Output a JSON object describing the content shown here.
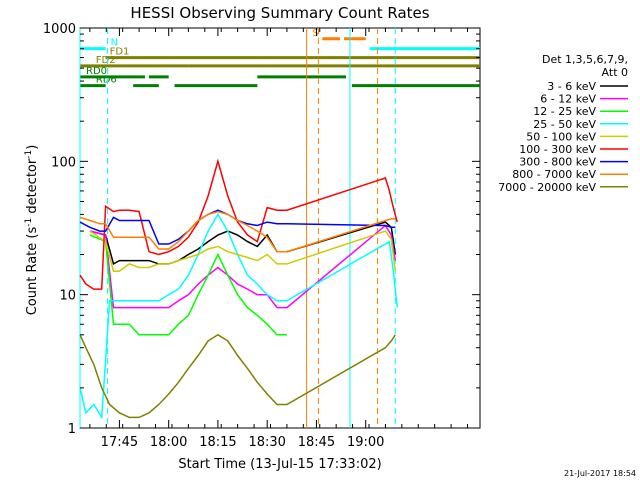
{
  "chart_data": {
    "type": "line",
    "title": "HESSI Observing Summary Count Rates",
    "xlabel": "Start Time (13-Jul-15 17:33:02)",
    "ylabel_main": "Count Rate (s",
    "ylabel_sup1": "-1",
    "ylabel_mid": " detector",
    "ylabel_sup2": "-1",
    "ylabel_end": ")",
    "yscale": "log",
    "ylim": [
      1,
      1000
    ],
    "xlim_minutes": [
      17.55,
      19.58
    ],
    "x_tick_labels": [
      "17:45",
      "18:00",
      "18:15",
      "18:30",
      "18:45",
      "19:00"
    ],
    "x_tick_hours": [
      17.75,
      18.0,
      18.25,
      18.5,
      18.75,
      19.0
    ],
    "y_tick_labels": [
      "1",
      "10",
      "100",
      "1000"
    ],
    "y_tick_values": [
      1,
      10,
      100,
      1000
    ],
    "timestamp": "21-Jul-2017 18:54",
    "legend": {
      "header": [
        "Det 1,3,5,6,7,9,",
        "Att 0"
      ],
      "entries": [
        {
          "name": "3 - 6 keV",
          "color": "#000000"
        },
        {
          "name": "6 - 12 keV",
          "color": "#ff00ff"
        },
        {
          "name": "12 - 25 keV",
          "color": "#00ff00"
        },
        {
          "name": "25 - 50 keV",
          "color": "#00ffff"
        },
        {
          "name": "50 - 100 keV",
          "color": "#cccc00"
        },
        {
          "name": "100 - 300 keV",
          "color": "#ff0000"
        },
        {
          "name": "300 - 800 keV",
          "color": "#0000ff"
        },
        {
          "name": "800 - 7000 keV",
          "color": "#ff8000"
        },
        {
          "name": "7000 - 20000 keV",
          "color": "#808000"
        }
      ]
    },
    "flags": [
      {
        "label": "S",
        "color": "#ff8000",
        "segments": [
          [
            18.78,
            18.87
          ],
          [
            18.89,
            19.0
          ]
        ],
        "y": 830
      },
      {
        "label": "N",
        "color": "#00ffff",
        "segments": [
          [
            17.55,
            17.68
          ],
          [
            19.02,
            19.58
          ]
        ],
        "y": 700
      },
      {
        "label": "FD1",
        "color": "#808000",
        "segments": [
          [
            17.68,
            19.58
          ]
        ],
        "y": 600
      },
      {
        "label": "FD2",
        "color": "#808000",
        "segments": [
          [
            17.55,
            18.1
          ],
          [
            18.1,
            19.58
          ]
        ],
        "y": 520
      },
      {
        "label": "RD0",
        "color": "#008000",
        "segments": [
          [
            17.55,
            17.88
          ],
          [
            17.9,
            18.0
          ],
          [
            18.45,
            18.9
          ]
        ],
        "y": 430
      },
      {
        "label": "RD6",
        "color": "#008000",
        "segments": [
          [
            17.55,
            17.68
          ],
          [
            17.82,
            17.95
          ],
          [
            18.03,
            18.45
          ],
          [
            18.93,
            19.58
          ]
        ],
        "y": 370
      }
    ],
    "vertical_markers": [
      {
        "hour": 17.55,
        "color": "#00ffff",
        "style": "solid"
      },
      {
        "hour": 17.69,
        "color": "#00ffff",
        "style": "dashed"
      },
      {
        "hour": 18.7,
        "color": "#ff8000",
        "style": "solid"
      },
      {
        "hour": 18.76,
        "color": "#ff8000",
        "style": "dashed"
      },
      {
        "hour": 18.92,
        "color": "#00ffff",
        "style": "solid"
      },
      {
        "hour": 19.06,
        "color": "#ff8000",
        "style": "dashed"
      },
      {
        "hour": 19.15,
        "color": "#00ffff",
        "style": "dashed"
      }
    ],
    "series": [
      {
        "name": "3 - 6 keV",
        "color": "#000000",
        "x": [
          17.6,
          17.68,
          17.72,
          17.75,
          17.8,
          17.85,
          17.9,
          17.95,
          18.0,
          18.05,
          18.1,
          18.15,
          18.2,
          18.25,
          18.3,
          18.35,
          18.4,
          18.45,
          18.5,
          18.55,
          18.6,
          19.1,
          19.13,
          19.15
        ],
        "y": [
          30,
          28,
          17,
          18,
          18,
          18,
          18,
          17,
          17,
          18,
          20,
          22,
          25,
          28,
          30,
          28,
          25,
          23,
          28,
          21,
          21,
          35,
          32,
          20
        ]
      },
      {
        "name": "6 - 12 keV",
        "color": "#ff00ff",
        "x": [
          17.6,
          17.68,
          17.72,
          17.75,
          17.8,
          17.85,
          17.9,
          17.95,
          18.0,
          18.05,
          18.1,
          18.15,
          18.2,
          18.25,
          18.3,
          18.35,
          18.4,
          18.45,
          18.5,
          18.55,
          18.6,
          19.1,
          19.13,
          19.15
        ],
        "y": [
          30,
          28,
          8,
          8,
          8,
          8,
          8,
          8,
          8,
          9,
          10,
          12,
          14,
          16,
          14,
          12,
          11,
          10,
          10,
          8,
          8,
          33,
          28,
          18
        ]
      },
      {
        "name": "12 - 25 keV",
        "color": "#00ff00",
        "x": [
          17.6,
          17.68,
          17.72,
          17.75,
          17.8,
          17.85,
          17.9,
          17.95,
          18.0,
          18.05,
          18.1,
          18.15,
          18.2,
          18.25,
          18.3,
          18.35,
          18.4,
          18.45,
          18.5,
          18.55,
          18.6
        ],
        "y": [
          28,
          25,
          6,
          6,
          6,
          5,
          5,
          5,
          5,
          6,
          7,
          10,
          14,
          20,
          14,
          10,
          8,
          7,
          6,
          5,
          5
        ]
      },
      {
        "name": "25 - 50 keV",
        "color": "#00ffff",
        "x": [
          17.55,
          17.58,
          17.62,
          17.66,
          17.7,
          17.75,
          17.8,
          17.85,
          17.9,
          17.95,
          18.0,
          18.05,
          18.1,
          18.15,
          18.2,
          18.25,
          18.3,
          18.35,
          18.4,
          18.45,
          18.5,
          18.55,
          18.6,
          19.12,
          19.14,
          19.16
        ],
        "y": [
          2,
          1.3,
          1.5,
          1.2,
          9,
          9,
          9,
          9,
          9,
          9,
          10,
          11,
          14,
          20,
          30,
          40,
          30,
          20,
          14,
          12,
          10,
          9,
          9,
          25,
          15,
          8
        ]
      },
      {
        "name": "50 - 100 keV",
        "color": "#cccc00",
        "x": [
          17.6,
          17.68,
          17.72,
          17.75,
          17.8,
          17.85,
          17.9,
          17.95,
          18.0,
          18.05,
          18.1,
          18.15,
          18.2,
          18.25,
          18.3,
          18.35,
          18.4,
          18.45,
          18.5,
          18.55,
          18.6,
          19.1,
          19.13,
          19.15
        ],
        "y": [
          30,
          25,
          15,
          15,
          17,
          16,
          16,
          17,
          17,
          18,
          19,
          20,
          22,
          23,
          21,
          20,
          19,
          18,
          20,
          17,
          17,
          30,
          26,
          15
        ]
      },
      {
        "name": "100 - 300 keV",
        "color": "#ff0000",
        "x": [
          17.55,
          17.58,
          17.62,
          17.66,
          17.68,
          17.72,
          17.75,
          17.8,
          17.85,
          17.9,
          17.95,
          18.0,
          18.05,
          18.1,
          18.15,
          18.2,
          18.25,
          18.3,
          18.35,
          18.4,
          18.45,
          18.5,
          18.55,
          18.6,
          19.1,
          19.12,
          19.14,
          19.16
        ],
        "y": [
          14,
          12,
          11,
          11,
          46,
          42,
          43,
          43,
          42,
          21,
          20,
          21,
          23,
          27,
          35,
          55,
          100,
          55,
          35,
          28,
          25,
          45,
          43,
          43,
          75,
          60,
          45,
          35
        ]
      },
      {
        "name": "300 - 800 keV",
        "color": "#0000ff",
        "x": [
          17.55,
          17.6,
          17.65,
          17.68,
          17.72,
          17.75,
          17.8,
          17.85,
          17.9,
          17.95,
          18.0,
          18.05,
          18.1,
          18.15,
          18.2,
          18.25,
          18.3,
          18.35,
          18.4,
          18.45,
          18.5,
          18.55,
          18.6,
          19.1,
          19.13,
          19.15
        ],
        "y": [
          35,
          32,
          30,
          30,
          38,
          36,
          36,
          36,
          36,
          24,
          24,
          26,
          30,
          36,
          40,
          43,
          40,
          36,
          34,
          33,
          35,
          34,
          34,
          33,
          32,
          32
        ]
      },
      {
        "name": "800 - 7000 keV",
        "color": "#ff8000",
        "x": [
          17.55,
          17.6,
          17.65,
          17.68,
          17.72,
          17.75,
          17.8,
          17.85,
          17.9,
          17.95,
          18.0,
          18.05,
          18.1,
          18.15,
          18.2,
          18.25,
          18.3,
          18.35,
          18.4,
          18.45,
          18.5,
          18.55,
          18.6,
          19.1,
          19.13,
          19.15
        ],
        "y": [
          38,
          36,
          34,
          34,
          27,
          27,
          27,
          27,
          27,
          22,
          22,
          25,
          30,
          36,
          40,
          42,
          40,
          36,
          33,
          30,
          27,
          21,
          21,
          36,
          37,
          37
        ]
      },
      {
        "name": "7000 - 20000 keV",
        "color": "#808000",
        "x": [
          17.55,
          17.58,
          17.62,
          17.66,
          17.7,
          17.75,
          17.8,
          17.85,
          17.9,
          17.95,
          18.0,
          18.05,
          18.1,
          18.15,
          18.2,
          18.25,
          18.3,
          18.35,
          18.4,
          18.45,
          18.5,
          18.55,
          18.6,
          19.1,
          19.13,
          19.15
        ],
        "y": [
          5,
          4,
          3,
          2,
          1.5,
          1.3,
          1.2,
          1.2,
          1.3,
          1.5,
          1.8,
          2.2,
          2.8,
          3.5,
          4.5,
          5,
          4.5,
          3.5,
          2.8,
          2.2,
          1.8,
          1.5,
          1.5,
          4,
          4.5,
          5
        ]
      }
    ]
  }
}
